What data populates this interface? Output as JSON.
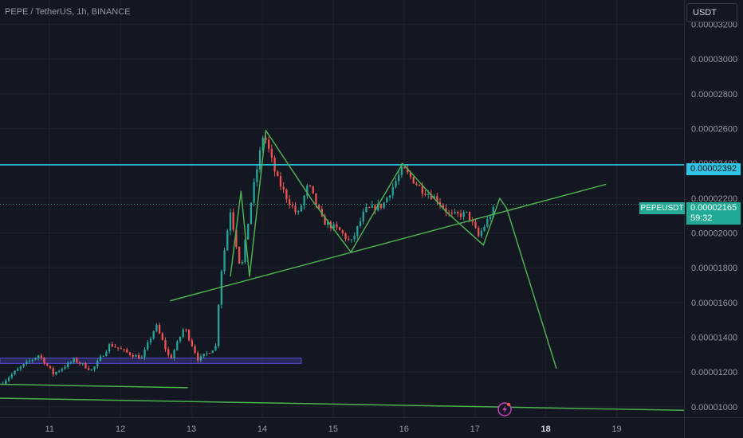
{
  "header": {
    "title": "PEPE / TetherUS, 1h, BINANCE",
    "unit_label": "USDT"
  },
  "price_tags": {
    "level_value": "0.00002392",
    "symbol": "PEPEUSDT",
    "current_value": "0.00002165",
    "countdown": "59:32"
  },
  "colors": {
    "background": "#131722",
    "grid": "#1e222d",
    "up": "#26a69a",
    "down": "#ef5350",
    "drawing": "#4caf50",
    "level": "#2ec6e6",
    "zone": "#5b4bd6"
  },
  "chart_data": {
    "type": "candlestick",
    "x_tick_labels": [
      "11",
      "12",
      "13",
      "14",
      "15",
      "16",
      "17",
      "18",
      "19"
    ],
    "x_tick_positions": [
      11,
      12,
      13,
      14,
      15,
      16,
      17,
      18,
      19
    ],
    "y_tick_labels": [
      "0.00003200",
      "0.00003000",
      "0.00002800",
      "0.00002600",
      "0.00002400",
      "0.00002200",
      "0.00002000",
      "0.00001800",
      "0.00001600",
      "0.00001400",
      "0.00001200",
      "0.00001000"
    ],
    "y_tick_values": [
      3.2e-05,
      3e-05,
      2.8e-05,
      2.6e-05,
      2.4e-05,
      2.2e-05,
      2e-05,
      1.8e-05,
      1.6e-05,
      1.4e-05,
      1.2e-05,
      1e-05
    ],
    "xlim": [
      10.3,
      19.95
    ],
    "ylim": [
      9.4e-06,
      3.34e-05
    ],
    "candle_interval_days": 0.04167,
    "key_price_path": [
      [
        10.3,
        1.13e-05
      ],
      [
        10.6,
        1.23e-05
      ],
      [
        10.85,
        1.3e-05
      ],
      [
        11.05,
        1.19e-05
      ],
      [
        11.35,
        1.27e-05
      ],
      [
        11.6,
        1.21e-05
      ],
      [
        11.85,
        1.36e-05
      ],
      [
        12.1,
        1.31e-05
      ],
      [
        12.3,
        1.28e-05
      ],
      [
        12.5,
        1.47e-05
      ],
      [
        12.7,
        1.27e-05
      ],
      [
        12.9,
        1.46e-05
      ],
      [
        13.1,
        1.27e-05
      ],
      [
        13.35,
        1.35e-05
      ],
      [
        13.4,
        1.72e-05
      ],
      [
        13.55,
        2.13e-05
      ],
      [
        13.7,
        1.78e-05
      ],
      [
        13.85,
        2.2e-05
      ],
      [
        14.02,
        2.58e-05
      ],
      [
        14.2,
        2.32e-05
      ],
      [
        14.35,
        2.2e-05
      ],
      [
        14.5,
        2.1e-05
      ],
      [
        14.65,
        2.28e-05
      ],
      [
        14.85,
        2.07e-05
      ],
      [
        15.1,
        2.01e-05
      ],
      [
        15.25,
        1.94e-05
      ],
      [
        15.45,
        2.13e-05
      ],
      [
        15.7,
        2.16e-05
      ],
      [
        15.98,
        2.37e-05
      ],
      [
        16.25,
        2.25e-05
      ],
      [
        16.45,
        2.2e-05
      ],
      [
        16.65,
        2.1e-05
      ],
      [
        16.9,
        2.11e-05
      ],
      [
        17.05,
        1.98e-05
      ],
      [
        17.2,
        2.09e-05
      ],
      [
        17.3,
        2.16e-05
      ]
    ],
    "horizontal_levels": [
      2.392e-05
    ],
    "current_price": 2.165e-05,
    "zone": {
      "x": [
        10.3,
        14.55
      ],
      "y": [
        1.25e-05,
        1.28e-05
      ]
    },
    "drawings": [
      {
        "name": "rising-trendline",
        "points": [
          [
            12.7,
            1.61e-05
          ],
          [
            18.85,
            2.28e-05
          ]
        ]
      },
      {
        "name": "zigzag-pattern",
        "points": [
          [
            13.55,
            1.75e-05
          ],
          [
            13.7,
            2.24e-05
          ],
          [
            13.82,
            1.75e-05
          ],
          [
            14.05,
            2.59e-05
          ],
          [
            14.7,
            2.19e-05
          ],
          [
            15.25,
            1.89e-05
          ],
          [
            15.98,
            2.4e-05
          ],
          [
            16.6,
            2.12e-05
          ],
          [
            17.12,
            1.93e-05
          ],
          [
            17.35,
            2.2e-05
          ],
          [
            17.45,
            2.14e-05
          ],
          [
            18.15,
            1.22e-05
          ]
        ]
      },
      {
        "name": "lower-support-line",
        "points": [
          [
            10.3,
            1.13e-05
          ],
          [
            12.95,
            1.11e-05
          ]
        ]
      },
      {
        "name": "bottom-line",
        "points": [
          [
            10.3,
            1.05e-05
          ],
          [
            19.95,
            9.8e-06
          ]
        ]
      }
    ],
    "grid": true,
    "legend": false
  }
}
